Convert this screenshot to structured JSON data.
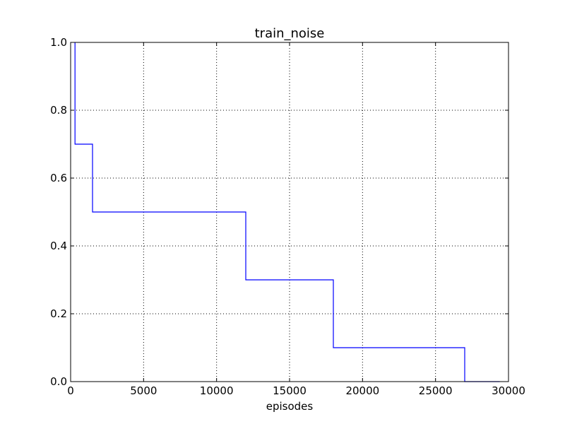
{
  "chart_data": {
    "type": "line",
    "title": "train_noise",
    "xlabel": "episodes",
    "ylabel": "",
    "xlim": [
      0,
      30000
    ],
    "ylim": [
      0.0,
      1.0
    ],
    "grid": true,
    "grid_style": "dotted",
    "line_style": "step",
    "x_ticks": [
      0,
      5000,
      10000,
      15000,
      20000,
      25000,
      30000
    ],
    "x_tick_labels": [
      "0",
      "5000",
      "10000",
      "15000",
      "20000",
      "25000",
      "30000"
    ],
    "y_ticks": [
      0.0,
      0.2,
      0.4,
      0.6,
      0.8,
      1.0
    ],
    "y_tick_labels": [
      "0.0",
      "0.2",
      "0.4",
      "0.6",
      "0.8",
      "1.0"
    ],
    "series": [
      {
        "color": "#0000ff",
        "x": [
          300,
          300,
          1500,
          1500,
          12000,
          12000,
          18000,
          18000,
          27000,
          27000,
          29400
        ],
        "y": [
          1.0,
          0.7,
          0.7,
          0.5,
          0.5,
          0.3,
          0.3,
          0.1,
          0.1,
          0.0,
          0.0
        ]
      }
    ]
  }
}
